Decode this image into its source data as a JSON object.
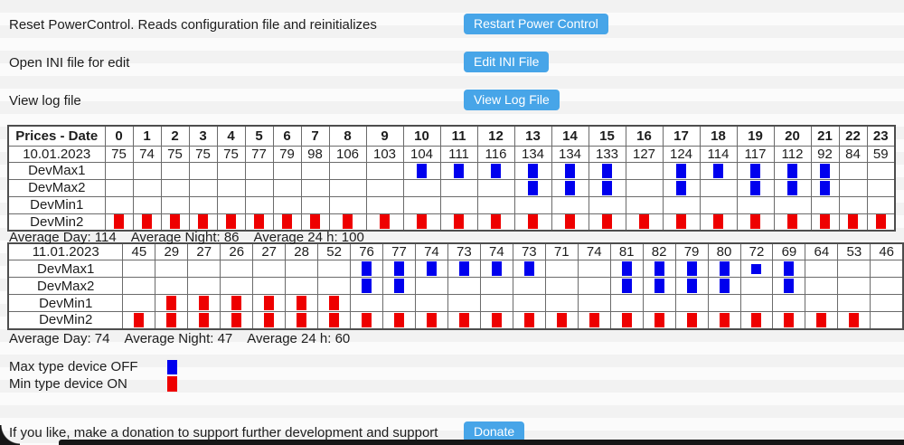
{
  "actions": [
    {
      "label": "Reset PowerControl. Reads configuration file and reinitializes",
      "button": "Restart Power Control"
    },
    {
      "label": "Open INI file for edit",
      "button": "Edit INI File"
    },
    {
      "label": "View log file",
      "button": "View Log File"
    }
  ],
  "table": {
    "header_label": "Prices - Date",
    "hours": [
      "0",
      "1",
      "2",
      "3",
      "4",
      "5",
      "6",
      "7",
      "8",
      "9",
      "10",
      "11",
      "12",
      "13",
      "14",
      "15",
      "16",
      "17",
      "18",
      "19",
      "20",
      "21",
      "22",
      "23"
    ]
  },
  "days": [
    {
      "date": "10.01.2023",
      "prices": [
        75,
        74,
        75,
        75,
        75,
        77,
        79,
        98,
        106,
        103,
        104,
        111,
        116,
        134,
        134,
        133,
        127,
        124,
        114,
        117,
        112,
        92,
        84,
        59
      ],
      "devices": [
        {
          "name": "DevMax1",
          "type": "max",
          "marked": [
            10,
            11,
            12,
            13,
            14,
            15,
            17,
            18,
            19,
            20,
            21
          ],
          "partial": []
        },
        {
          "name": "DevMax2",
          "type": "max",
          "marked": [
            13,
            14,
            15,
            17,
            19,
            20,
            21
          ],
          "partial": []
        },
        {
          "name": "DevMin1",
          "type": "min",
          "marked": [],
          "partial": []
        },
        {
          "name": "DevMin2",
          "type": "min",
          "marked": [
            0,
            1,
            2,
            3,
            4,
            5,
            6,
            7,
            8,
            9,
            10,
            11,
            12,
            13,
            14,
            15,
            16,
            17,
            18,
            19,
            20,
            21,
            22,
            23
          ],
          "partial": []
        }
      ],
      "averages": [
        "Average Day: 114",
        "Average Night: 86",
        "Average 24 h: 100"
      ]
    },
    {
      "date": "11.01.2023",
      "prices": [
        45,
        29,
        27,
        26,
        27,
        28,
        52,
        76,
        77,
        74,
        73,
        74,
        73,
        71,
        74,
        81,
        82,
        79,
        80,
        72,
        69,
        64,
        53,
        46
      ],
      "devices": [
        {
          "name": "DevMax1",
          "type": "max",
          "marked": [
            7,
            8,
            9,
            10,
            11,
            12,
            15,
            16,
            17,
            18,
            19,
            20
          ],
          "partial": [
            19
          ]
        },
        {
          "name": "DevMax2",
          "type": "max",
          "marked": [
            7,
            8,
            15,
            16,
            17,
            18,
            20
          ],
          "partial": []
        },
        {
          "name": "DevMin1",
          "type": "min",
          "marked": [
            1,
            2,
            3,
            4,
            5,
            6
          ],
          "partial": []
        },
        {
          "name": "DevMin2",
          "type": "min",
          "marked": [
            0,
            1,
            2,
            3,
            4,
            5,
            6,
            7,
            8,
            9,
            10,
            11,
            12,
            13,
            14,
            15,
            16,
            17,
            18,
            19,
            20,
            21,
            22
          ],
          "partial": []
        }
      ],
      "averages": [
        "Average Day: 74",
        "Average Night: 47",
        "Average 24 h: 60"
      ]
    }
  ],
  "legend": [
    {
      "label": "Max type device OFF",
      "type": "max"
    },
    {
      "label": "Min type device ON",
      "type": "min"
    }
  ],
  "donation": {
    "label": "If you like, make a donation to support further development and support",
    "button": "Donate"
  },
  "colors": {
    "button_blue": "#47a5e8",
    "max_mark_blue": "#0000ee",
    "min_mark_red": "#ee0000"
  }
}
